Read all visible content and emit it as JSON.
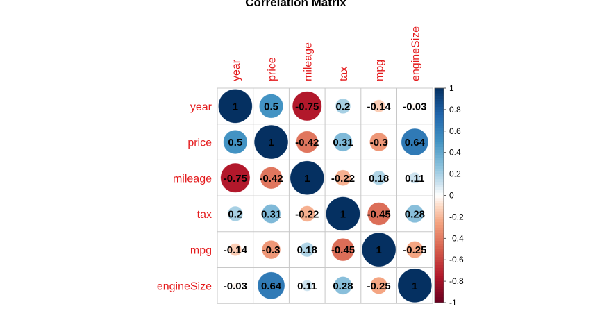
{
  "chart_data": {
    "type": "heatmap",
    "title": "Correlation Matrix",
    "variables": [
      "year",
      "price",
      "mileage",
      "tax",
      "mpg",
      "engineSize"
    ],
    "matrix": [
      [
        1,
        0.5,
        -0.75,
        0.2,
        -0.14,
        -0.03
      ],
      [
        0.5,
        1,
        -0.42,
        0.31,
        -0.3,
        0.64
      ],
      [
        -0.75,
        -0.42,
        1,
        -0.22,
        0.18,
        0.11
      ],
      [
        0.2,
        0.31,
        -0.22,
        1,
        -0.45,
        0.28
      ],
      [
        -0.14,
        -0.3,
        0.18,
        -0.45,
        1,
        -0.25
      ],
      [
        -0.03,
        0.64,
        0.11,
        0.28,
        -0.25,
        1
      ]
    ],
    "value_labels": [
      [
        "1",
        "0.5",
        "-0.75",
        "0.2",
        "-0.14",
        "-0.03"
      ],
      [
        "0.5",
        "1",
        "-0.42",
        "0.31",
        "-0.3",
        "0.64"
      ],
      [
        "-0.75",
        "-0.42",
        "1",
        "-0.22",
        "0.18",
        "0.11"
      ],
      [
        "0.2",
        "0.31",
        "-0.22",
        "1",
        "-0.45",
        "0.28"
      ],
      [
        "-0.14",
        "-0.3",
        "0.18",
        "-0.45",
        "1",
        "-0.25"
      ],
      [
        "-0.03",
        "0.64",
        "0.11",
        "0.28",
        "-0.25",
        "1"
      ]
    ],
    "color_scale": {
      "range": [
        -1,
        1
      ],
      "ticks": [
        1,
        0.8,
        0.6,
        0.4,
        0.2,
        0,
        -0.2,
        -0.4,
        -0.6,
        -0.8,
        -1
      ],
      "tick_labels": [
        "1",
        "0.8",
        "0.6",
        "0.4",
        "0.2",
        "0",
        "-0.2",
        "-0.4",
        "-0.6",
        "-0.8",
        "-1"
      ],
      "legend_position": "right"
    },
    "label_color": "#e41a1c",
    "grid": true
  }
}
